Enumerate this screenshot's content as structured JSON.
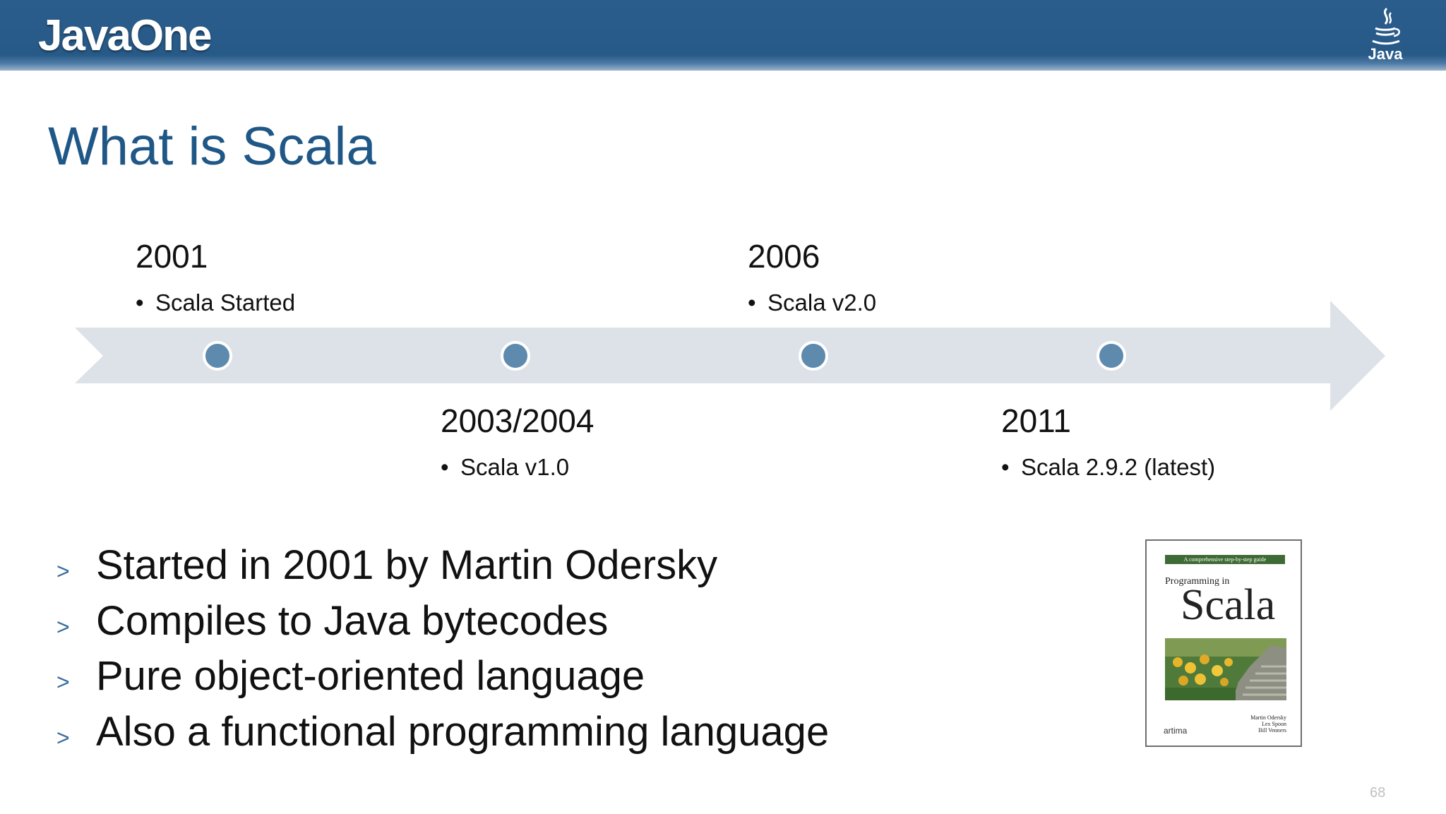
{
  "header": {
    "logo_text": "JavaOne",
    "java_logo_text": "Java",
    "background_color": "#285a88"
  },
  "slide": {
    "title": "What is Scala",
    "title_color": "#1f5786",
    "page_number": "68"
  },
  "timeline": {
    "milestones": [
      {
        "year": "2001",
        "item": "Scala Started"
      },
      {
        "year": "2003/2004",
        "item": "Scala v1.0"
      },
      {
        "year": "2006",
        "item": "Scala v2.0"
      },
      {
        "year": "2011",
        "item": "Scala 2.9.2 (latest)"
      }
    ],
    "arrow_color": "#dce2e8",
    "dot_color": "#5e8aae"
  },
  "bullets": {
    "marker": ">",
    "items": [
      "Started in 2001 by Martin Odersky",
      "Compiles to Java bytecodes",
      "Pure object-oriented language",
      "Also a functional programming language"
    ]
  },
  "book": {
    "tagline": "A comprehensive step-by-step guide",
    "prefix": "Programming in",
    "title": "Scala",
    "authors": [
      "Martin Odersky",
      "Lex Spoon",
      "Bill Venners"
    ],
    "publisher": "artima"
  }
}
